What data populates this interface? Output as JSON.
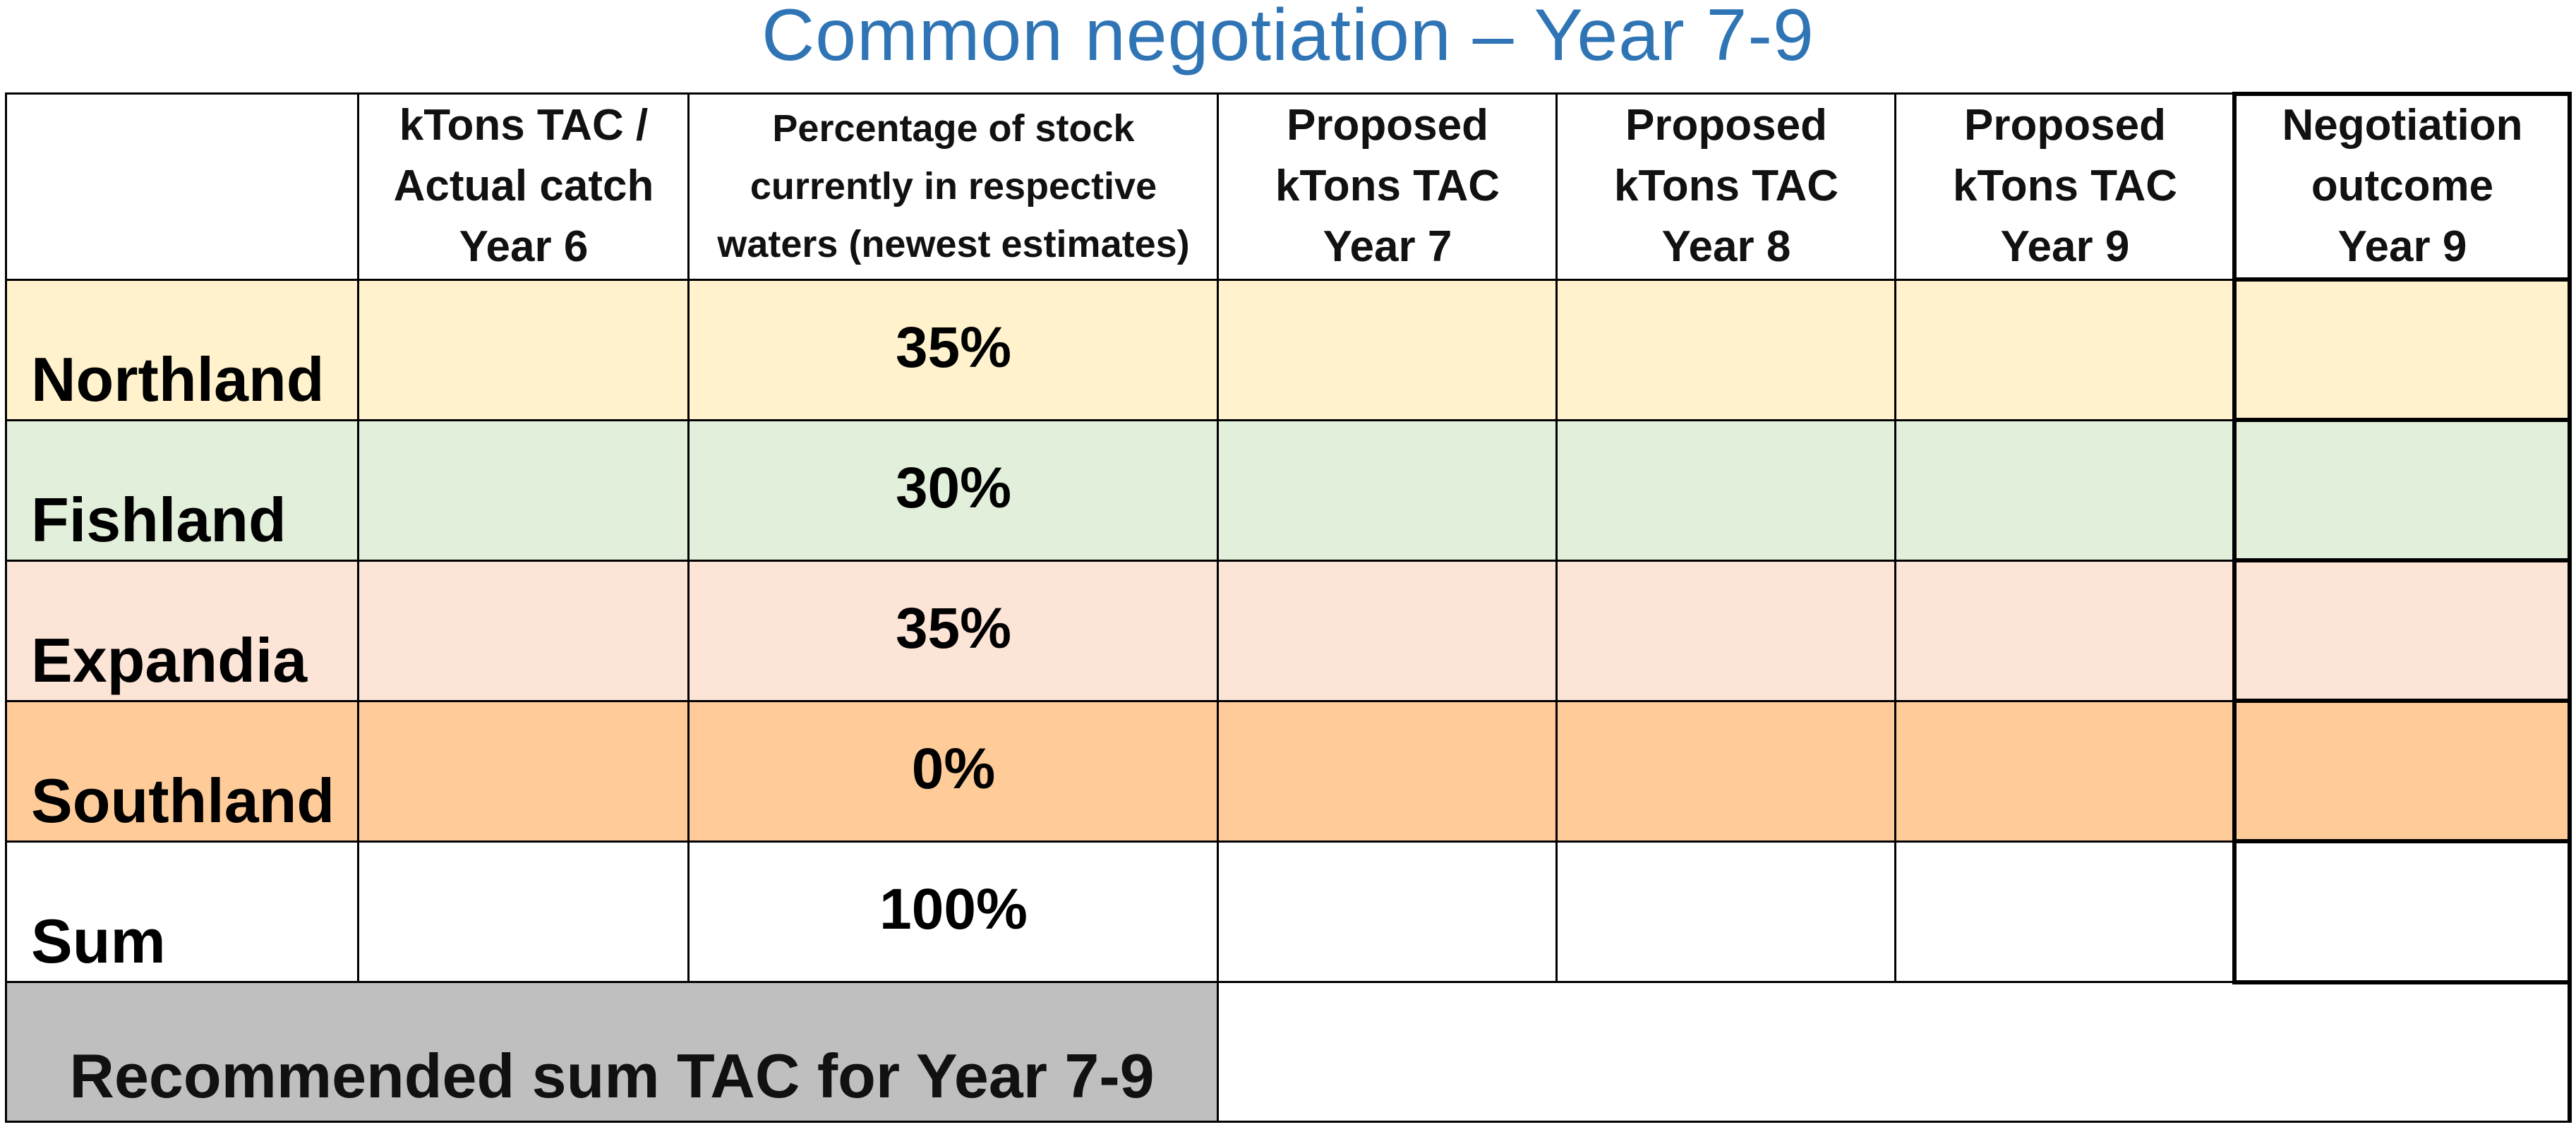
{
  "title": "Common negotiation – Year 7-9",
  "columns": [
    "",
    "kTons TAC /\nActual catch\nYear 6",
    "Percentage of stock\ncurrently in respective\nwaters (newest estimates)",
    "Proposed\nkTons TAC\nYear 7",
    "Proposed\nkTons TAC\nYear 8",
    "Proposed\nkTons TAC\nYear 9",
    "Negotiation\noutcome\nYear 9"
  ],
  "rows": [
    {
      "label": "Northland",
      "percentage": "35%",
      "color": "#fff2cc"
    },
    {
      "label": "Fishland",
      "percentage": "30%",
      "color": "#e2efda"
    },
    {
      "label": "Expandia",
      "percentage": "35%",
      "color": "#fce4d6"
    },
    {
      "label": "Southland",
      "percentage": "0%",
      "color": "#ffcc99"
    },
    {
      "label": "Sum",
      "percentage": "100%",
      "color": "#ffffff"
    }
  ],
  "recommended": {
    "label": "Recommended sum TAC for Year 7-9",
    "color": "#bfbfbf"
  }
}
